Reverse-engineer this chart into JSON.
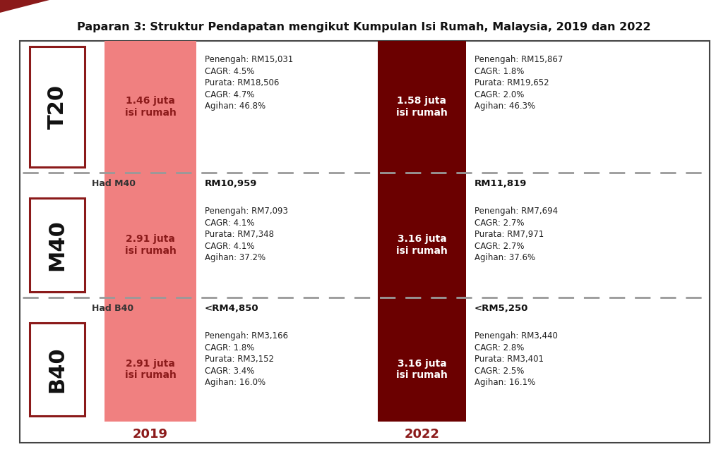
{
  "title": "Paparan 3: Struktur Pendapatan mengikut Kumpulan Isi Rumah, Malaysia, 2019 dan 2022",
  "background_color": "#ffffff",
  "outer_border_color": "#444444",
  "label_box_border_color": "#8B1A1A",
  "bar_2019_color": "#F08080",
  "bar_2022_color": "#6B0000",
  "bar_2019_text_color": "#8B1A1A",
  "bar_2022_text_color": "#ffffff",
  "dashed_line_color": "#999999",
  "stats_text_color": "#222222",
  "year_text_color": "#8B1A1A",
  "groups_top_to_bottom": [
    "T20",
    "M40",
    "B40"
  ],
  "bars_2019": [
    "1.46 juta\nisi rumah",
    "2.91 juta\nisi rumah",
    "2.91 juta\nisi rumah"
  ],
  "bars_2022": [
    "1.58 juta\nisi rumah",
    "3.16 juta\nisi rumah",
    "3.16 juta\nisi rumah"
  ],
  "thresholds": {
    "M40_label": "Had M40",
    "B40_label": "Had B40",
    "M40_2019": "RM10,959",
    "M40_2022": "RM11,819",
    "B40_2019": "<RM4,850",
    "B40_2022": "<RM5,250"
  },
  "stats_2019": {
    "T20": [
      "Penengah: RM15,031",
      "CAGR: 4.5%",
      "Purata: RM18,506",
      "CAGR: 4.7%",
      "Agihan: 46.8%"
    ],
    "M40": [
      "Penengah: RM7,093",
      "CAGR: 4.1%",
      "Purata: RM7,348",
      "CAGR: 4.1%",
      "Agihan: 37.2%"
    ],
    "B40": [
      "Penengah: RM3,166",
      "CAGR: 1.8%",
      "Purata: RM3,152",
      "CAGR: 3.4%",
      "Agihan: 16.0%"
    ]
  },
  "stats_2022": {
    "T20": [
      "Penengah: RM15,867",
      "CAGR: 1.8%",
      "Purata: RM19,652",
      "CAGR: 2.0%",
      "Agihan: 46.3%"
    ],
    "M40": [
      "Penengah: RM7,694",
      "CAGR: 2.7%",
      "Purata: RM7,971",
      "CAGR: 2.7%",
      "Agihan: 37.6%"
    ],
    "B40": [
      "Penengah: RM3,440",
      "CAGR: 2.8%",
      "Purata: RM3,401",
      "CAGR: 2.5%",
      "Agihan: 16.1%"
    ]
  },
  "header_accent_color": "#8B1A1A"
}
